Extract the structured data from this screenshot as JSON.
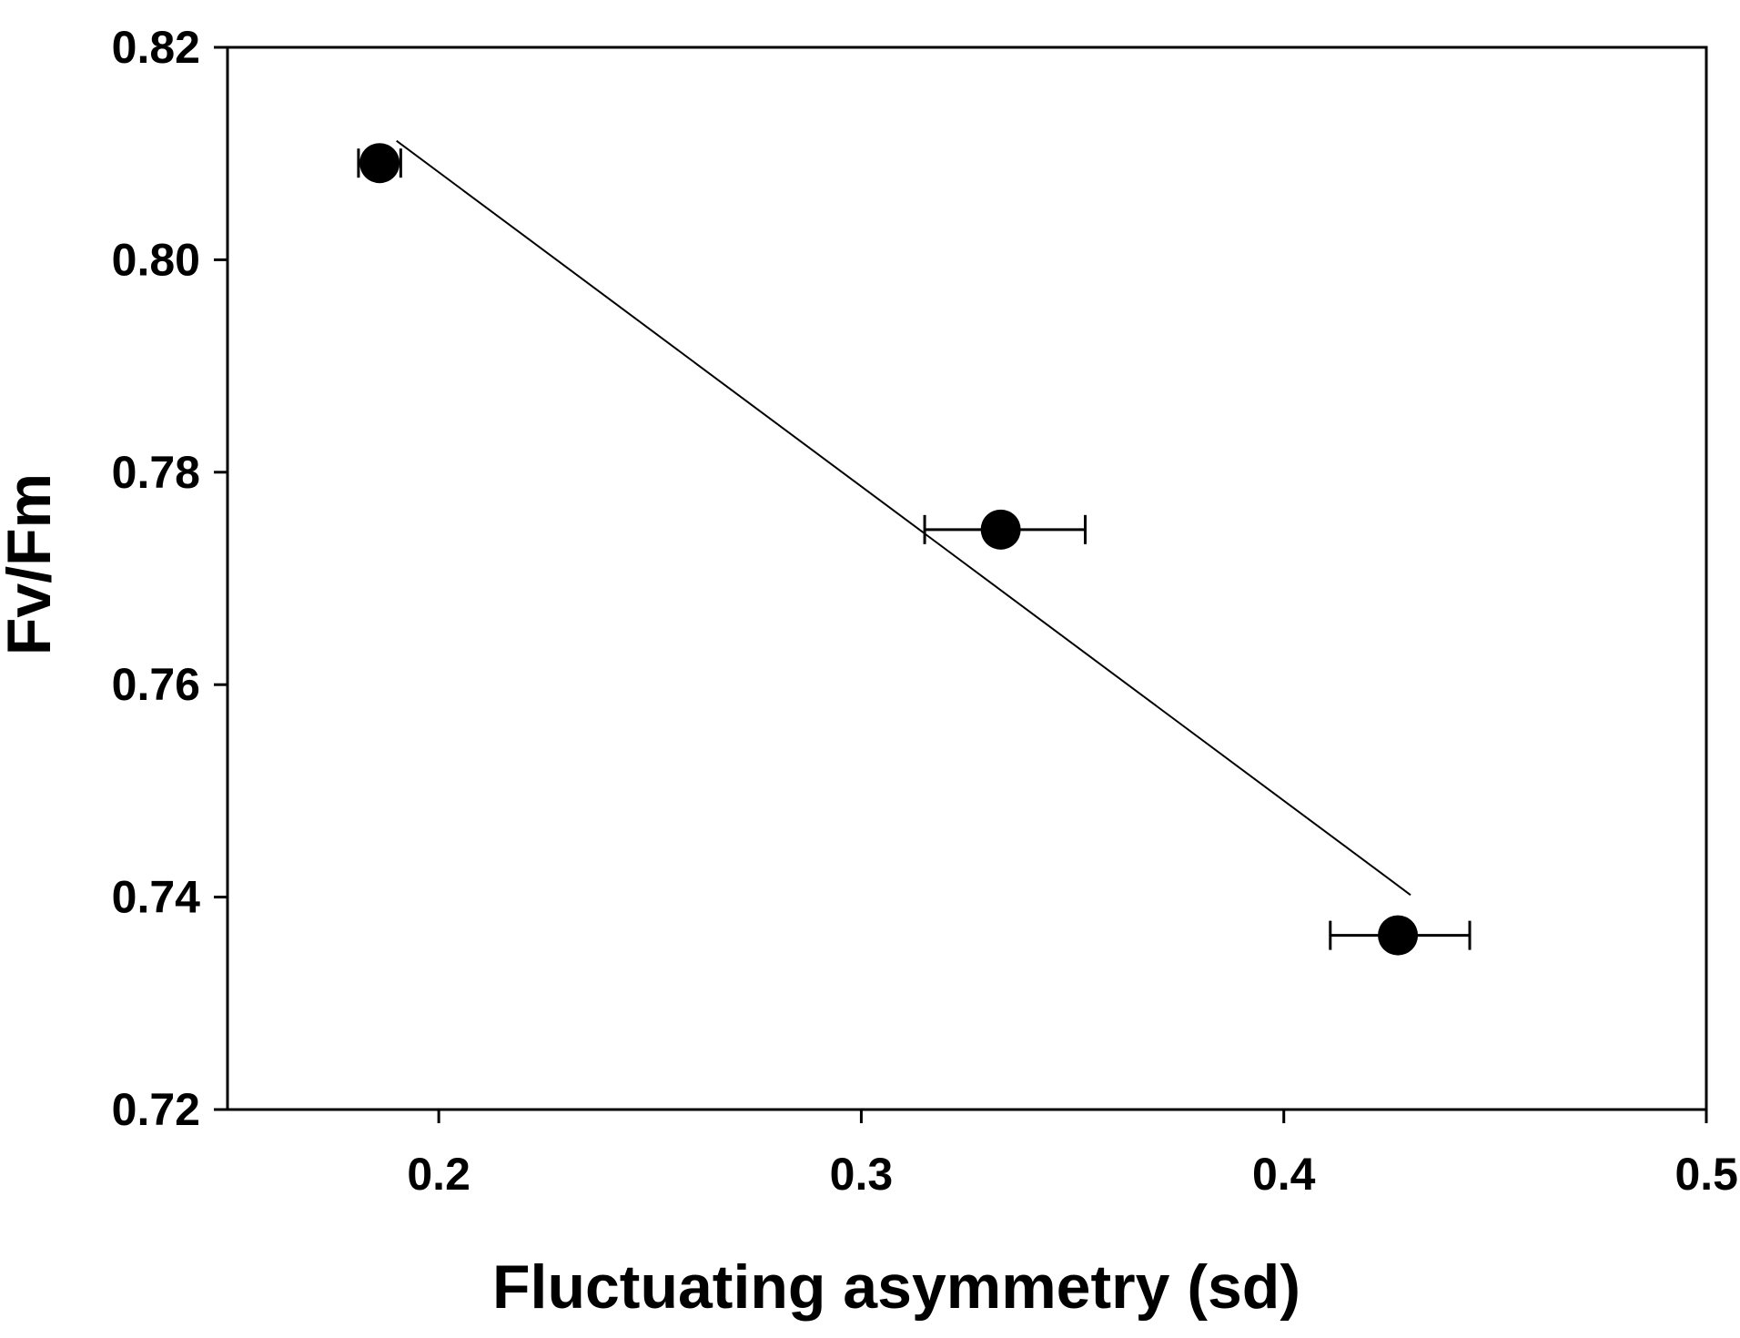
{
  "chart_data": {
    "type": "scatter",
    "title": "",
    "xlabel": "Fluctuating asymmetry (sd)",
    "ylabel": "Fv/Fm",
    "xlim": [
      0.15,
      0.5
    ],
    "ylim": [
      0.72,
      0.82
    ],
    "x_ticks": [
      0.2,
      0.3,
      0.4,
      0.5
    ],
    "x_tick_labels": [
      "0.2",
      "0.3",
      "0.4",
      "0.5"
    ],
    "y_ticks": [
      0.72,
      0.74,
      0.76,
      0.78,
      0.8,
      0.82
    ],
    "y_tick_labels": [
      "0.72",
      "0.74",
      "0.76",
      "0.78",
      "0.80",
      "0.82"
    ],
    "grid": false,
    "legend": "none",
    "series": [
      {
        "points": [
          {
            "x": 0.186,
            "y": 0.8091,
            "x_err_low": 0.181,
            "x_err_high": 0.191
          },
          {
            "x": 0.333,
            "y": 0.7746,
            "x_err_low": 0.315,
            "x_err_high": 0.353
          },
          {
            "x": 0.427,
            "y": 0.7364,
            "x_err_low": 0.411,
            "x_err_high": 0.444
          }
        ],
        "marker_color": "#000000"
      }
    ],
    "fit_line": {
      "x": [
        0.19,
        0.43
      ],
      "y": [
        0.8112,
        0.7402
      ],
      "color": "#000000"
    }
  }
}
